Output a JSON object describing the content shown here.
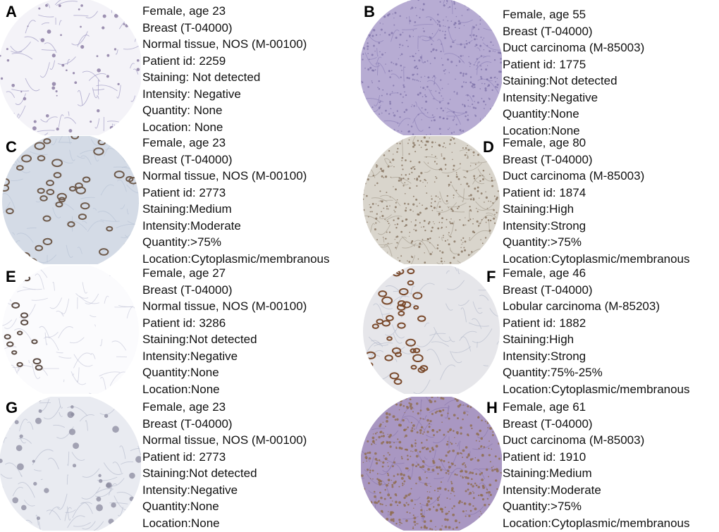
{
  "panels": [
    {
      "letter": "A",
      "lines": [
        "Female, age 23",
        "Breast (T-04000)",
        "Normal tissue, NOS (M-00100)",
        "Patient id: 2259",
        "Staining: Not detected",
        "Intensity:  Negative",
        "Quantity:  None",
        "Location:  None"
      ],
      "core": {
        "bg": "#f4f3f8",
        "stroke": "#9d97c2",
        "blob": "#7f6f9a",
        "style": "sparse-bright"
      }
    },
    {
      "letter": "B",
      "lines": [
        "Female, age 55",
        "Breast (T-04000)",
        "Duct carcinoma (M-85003)",
        "Patient id: 1775",
        "Staining:Not detected",
        "Intensity:Negative",
        "Quantity:None",
        "Location:None"
      ],
      "core": {
        "bg": "#b7acd3",
        "stroke": "#8f83b9",
        "blob": "#7d72a8",
        "style": "dense-purple"
      }
    },
    {
      "letter": "C",
      "lines": [
        "Female, age 23",
        "Breast (T-04000)",
        "Normal tissue, NOS (M-00100)",
        "Patient id: 2773",
        "Staining:Medium",
        "Intensity:Moderate",
        "Quantity:>75%",
        "Location:Cytoplasmic/membranous"
      ],
      "core": {
        "bg": "#d4dbe6",
        "stroke": "#b9c4d5",
        "blob": "#6e5a4b",
        "style": "glands-brown"
      }
    },
    {
      "letter": "D",
      "lines": [
        "Female, age 80",
        "Breast (T-04000)",
        "Duct carcinoma (M-85003)",
        "Patient id: 1874",
        "Staining:High",
        "Intensity:Strong",
        "Quantity:>75%",
        "Location:Cytoplasmic/membranous"
      ],
      "core": {
        "bg": "#d9d5cc",
        "stroke": "#a89f92",
        "blob": "#7d6a56",
        "style": "dense-brown"
      }
    },
    {
      "letter": "E",
      "lines": [
        "Female, age 27",
        "Breast (T-04000)",
        "Normal tissue, NOS (M-00100)",
        "Patient id: 3286",
        "Staining:Not detected",
        "Intensity:Negative",
        "Quantity:None",
        "Location:None"
      ],
      "core": {
        "bg": "#fbfbfd",
        "stroke": "#c7c9da",
        "blob": "#5d4d45",
        "style": "sparse-white"
      }
    },
    {
      "letter": "F",
      "lines": [
        "Female, age 46",
        "Breast (T-04000)",
        "Lobular carcinoma (M-85203)",
        "Patient id: 1882",
        "Staining:High",
        "Intensity:Strong",
        "Quantity:75%-25%",
        "Location:Cytoplasmic/membranous"
      ],
      "core": {
        "bg": "#e6e6ea",
        "stroke": "#b7bccc",
        "blob": "#7a4a2c",
        "style": "left-brown"
      }
    },
    {
      "letter": "G",
      "lines": [
        "Female, age 23",
        "Breast (T-04000)",
        "Normal tissue, NOS (M-00100)",
        "Patient id: 2773",
        "Staining:Not detected",
        "Intensity:Negative",
        "Quantity:None",
        "Location:None"
      ],
      "core": {
        "bg": "#e9ebf1",
        "stroke": "#b6bccd",
        "blob": "#8a8a9e",
        "style": "sparse-gray"
      }
    },
    {
      "letter": "H",
      "lines": [
        "Female, age 61",
        "Breast (T-04000)",
        "Duct carcinoma (M-85003)",
        "Patient id: 1910",
        "Staining:Medium",
        "Intensity:Moderate",
        "Quantity:>75%",
        "Location:Cytoplasmic/membranous"
      ],
      "core": {
        "bg": "#a997c2",
        "stroke": "#8b79ad",
        "blob": "#8d6a45",
        "style": "speckle-brown"
      }
    }
  ]
}
